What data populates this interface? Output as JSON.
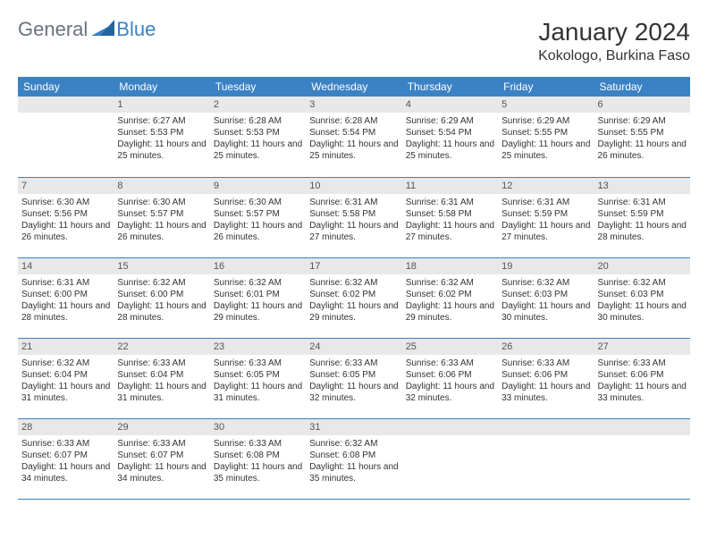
{
  "logo": {
    "general": "General",
    "blue": "Blue"
  },
  "title": "January 2024",
  "location": "Kokologo, Burkina Faso",
  "colors": {
    "header_bg": "#3b82c4",
    "header_text": "#ffffff",
    "daynum_bg": "#e8e8e8",
    "border": "#3b82c4",
    "logo_gray": "#6b7280",
    "logo_blue": "#3b82c4"
  },
  "weekdays": [
    "Sunday",
    "Monday",
    "Tuesday",
    "Wednesday",
    "Thursday",
    "Friday",
    "Saturday"
  ],
  "grid": [
    [
      null,
      {
        "n": "1",
        "sr": "6:27 AM",
        "ss": "5:53 PM",
        "dl": "11 hours and 25 minutes."
      },
      {
        "n": "2",
        "sr": "6:28 AM",
        "ss": "5:53 PM",
        "dl": "11 hours and 25 minutes."
      },
      {
        "n": "3",
        "sr": "6:28 AM",
        "ss": "5:54 PM",
        "dl": "11 hours and 25 minutes."
      },
      {
        "n": "4",
        "sr": "6:29 AM",
        "ss": "5:54 PM",
        "dl": "11 hours and 25 minutes."
      },
      {
        "n": "5",
        "sr": "6:29 AM",
        "ss": "5:55 PM",
        "dl": "11 hours and 25 minutes."
      },
      {
        "n": "6",
        "sr": "6:29 AM",
        "ss": "5:55 PM",
        "dl": "11 hours and 26 minutes."
      }
    ],
    [
      {
        "n": "7",
        "sr": "6:30 AM",
        "ss": "5:56 PM",
        "dl": "11 hours and 26 minutes."
      },
      {
        "n": "8",
        "sr": "6:30 AM",
        "ss": "5:57 PM",
        "dl": "11 hours and 26 minutes."
      },
      {
        "n": "9",
        "sr": "6:30 AM",
        "ss": "5:57 PM",
        "dl": "11 hours and 26 minutes."
      },
      {
        "n": "10",
        "sr": "6:31 AM",
        "ss": "5:58 PM",
        "dl": "11 hours and 27 minutes."
      },
      {
        "n": "11",
        "sr": "6:31 AM",
        "ss": "5:58 PM",
        "dl": "11 hours and 27 minutes."
      },
      {
        "n": "12",
        "sr": "6:31 AM",
        "ss": "5:59 PM",
        "dl": "11 hours and 27 minutes."
      },
      {
        "n": "13",
        "sr": "6:31 AM",
        "ss": "5:59 PM",
        "dl": "11 hours and 28 minutes."
      }
    ],
    [
      {
        "n": "14",
        "sr": "6:31 AM",
        "ss": "6:00 PM",
        "dl": "11 hours and 28 minutes."
      },
      {
        "n": "15",
        "sr": "6:32 AM",
        "ss": "6:00 PM",
        "dl": "11 hours and 28 minutes."
      },
      {
        "n": "16",
        "sr": "6:32 AM",
        "ss": "6:01 PM",
        "dl": "11 hours and 29 minutes."
      },
      {
        "n": "17",
        "sr": "6:32 AM",
        "ss": "6:02 PM",
        "dl": "11 hours and 29 minutes."
      },
      {
        "n": "18",
        "sr": "6:32 AM",
        "ss": "6:02 PM",
        "dl": "11 hours and 29 minutes."
      },
      {
        "n": "19",
        "sr": "6:32 AM",
        "ss": "6:03 PM",
        "dl": "11 hours and 30 minutes."
      },
      {
        "n": "20",
        "sr": "6:32 AM",
        "ss": "6:03 PM",
        "dl": "11 hours and 30 minutes."
      }
    ],
    [
      {
        "n": "21",
        "sr": "6:32 AM",
        "ss": "6:04 PM",
        "dl": "11 hours and 31 minutes."
      },
      {
        "n": "22",
        "sr": "6:33 AM",
        "ss": "6:04 PM",
        "dl": "11 hours and 31 minutes."
      },
      {
        "n": "23",
        "sr": "6:33 AM",
        "ss": "6:05 PM",
        "dl": "11 hours and 31 minutes."
      },
      {
        "n": "24",
        "sr": "6:33 AM",
        "ss": "6:05 PM",
        "dl": "11 hours and 32 minutes."
      },
      {
        "n": "25",
        "sr": "6:33 AM",
        "ss": "6:06 PM",
        "dl": "11 hours and 32 minutes."
      },
      {
        "n": "26",
        "sr": "6:33 AM",
        "ss": "6:06 PM",
        "dl": "11 hours and 33 minutes."
      },
      {
        "n": "27",
        "sr": "6:33 AM",
        "ss": "6:06 PM",
        "dl": "11 hours and 33 minutes."
      }
    ],
    [
      {
        "n": "28",
        "sr": "6:33 AM",
        "ss": "6:07 PM",
        "dl": "11 hours and 34 minutes."
      },
      {
        "n": "29",
        "sr": "6:33 AM",
        "ss": "6:07 PM",
        "dl": "11 hours and 34 minutes."
      },
      {
        "n": "30",
        "sr": "6:33 AM",
        "ss": "6:08 PM",
        "dl": "11 hours and 35 minutes."
      },
      {
        "n": "31",
        "sr": "6:32 AM",
        "ss": "6:08 PM",
        "dl": "11 hours and 35 minutes."
      },
      null,
      null,
      null
    ]
  ],
  "labels": {
    "sunrise": "Sunrise:",
    "sunset": "Sunset:",
    "daylight": "Daylight:"
  }
}
